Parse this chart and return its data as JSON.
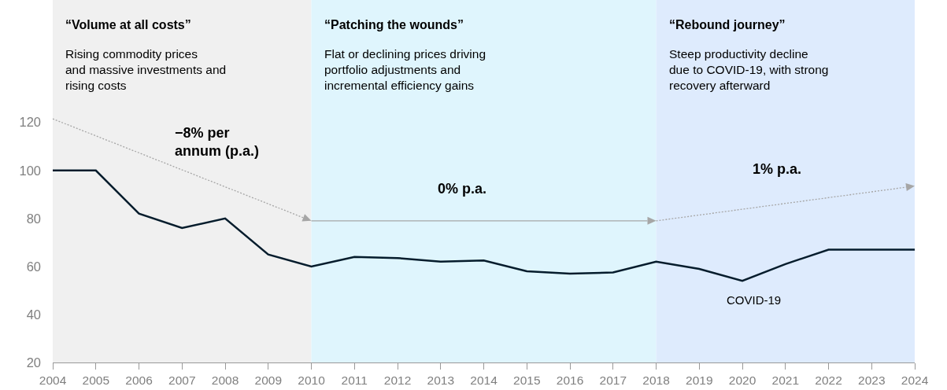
{
  "chart_data": {
    "type": "line",
    "x": [
      2004,
      2005,
      2006,
      2007,
      2008,
      2009,
      2010,
      2011,
      2012,
      2013,
      2014,
      2015,
      2016,
      2017,
      2018,
      2019,
      2020,
      2021,
      2022,
      2023,
      2024
    ],
    "series": [
      {
        "color": "#051c2c",
        "values": [
          100,
          100,
          82,
          76,
          80,
          65,
          60,
          64,
          63.5,
          62,
          62.5,
          58,
          57,
          57.5,
          62,
          59,
          54,
          61,
          67,
          67,
          67
        ]
      }
    ],
    "xlim": [
      2004,
      2024
    ],
    "xticks": [
      2004,
      2005,
      2006,
      2007,
      2008,
      2009,
      2010,
      2011,
      2012,
      2013,
      2014,
      2015,
      2016,
      2017,
      2018,
      2019,
      2020,
      2021,
      2022,
      2023,
      2024
    ],
    "ylim": [
      20,
      171
    ],
    "yticks": [
      20,
      40,
      60,
      80,
      100,
      120
    ],
    "grid": false,
    "marker": "none",
    "line_style": "solid",
    "bands": [
      {
        "axis": "x",
        "from": 2004,
        "to": 2010,
        "label": "“Volume at all costs”",
        "color": "#f0f0f0"
      },
      {
        "axis": "x",
        "from": 2010,
        "to": 2018,
        "label": "“Patching the wounds”",
        "color": "#dff5fd"
      },
      {
        "axis": "x",
        "from": 2018,
        "to": 2024,
        "label": "“Rebound journey”",
        "color": "#deebfd"
      }
    ],
    "annotations": [
      "Rising commodity prices\nand massive investments and\nrising costs",
      "Flat or declining prices driving\nportfolio adjustments and\nincremental efficiency gains",
      "Steep productivity decline\ndue to COVID-19, with strong\nrecovery afterward",
      "−8% per\nannum (p.a.)",
      "0% p.a.",
      "1% p.a.",
      "COVID-19"
    ]
  }
}
